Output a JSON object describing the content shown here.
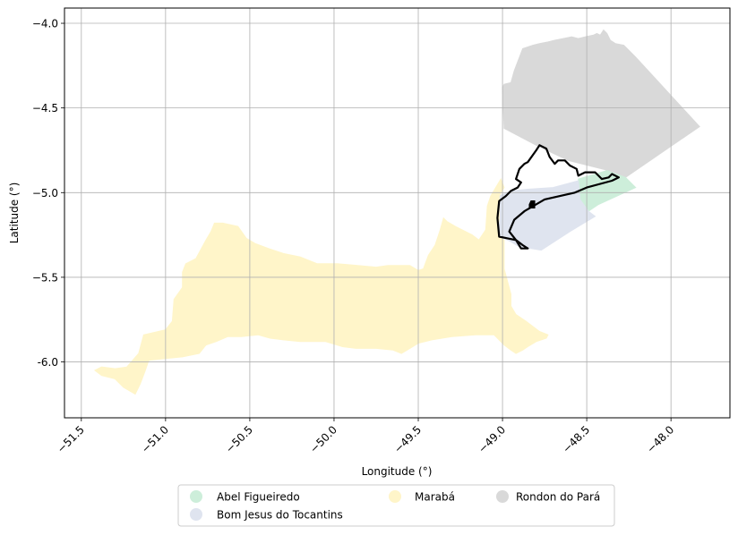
{
  "chart_data": {
    "type": "map",
    "xlabel": "Longitude (°)",
    "ylabel": "Latitude (°)",
    "xlim": [
      -51.6,
      -47.65
    ],
    "ylim": [
      -6.33,
      -3.91
    ],
    "x_ticks": [
      {
        "value": -51.5,
        "label": "−51.5"
      },
      {
        "value": -51.0,
        "label": "−51.0"
      },
      {
        "value": -50.5,
        "label": "−50.5"
      },
      {
        "value": -50.0,
        "label": "−50.0"
      },
      {
        "value": -49.5,
        "label": "−49.5"
      },
      {
        "value": -49.0,
        "label": "−49.0"
      },
      {
        "value": -48.5,
        "label": "−48.5"
      },
      {
        "value": -48.0,
        "label": "−48.0"
      }
    ],
    "y_ticks": [
      {
        "value": -4.0,
        "label": "−4.0"
      },
      {
        "value": -4.5,
        "label": "−4.5"
      },
      {
        "value": -5.0,
        "label": "−5.0"
      },
      {
        "value": -5.5,
        "label": "−5.5"
      },
      {
        "value": -6.0,
        "label": "-6.0"
      }
    ],
    "grid": true,
    "legend_placement": "bottom-center",
    "regions": [
      {
        "name": "Rondon do Pará",
        "color": "#d9d9d9",
        "polygon": [
          [
            -49.0,
            -4.38
          ],
          [
            -48.99,
            -4.36
          ],
          [
            -48.95,
            -4.35
          ],
          [
            -48.93,
            -4.28
          ],
          [
            -48.88,
            -4.15
          ],
          [
            -48.82,
            -4.13
          ],
          [
            -48.78,
            -4.12
          ],
          [
            -48.73,
            -4.11
          ],
          [
            -48.69,
            -4.1
          ],
          [
            -48.64,
            -4.09
          ],
          [
            -48.59,
            -4.08
          ],
          [
            -48.55,
            -4.09
          ],
          [
            -48.51,
            -4.08
          ],
          [
            -48.46,
            -4.07
          ],
          [
            -48.44,
            -4.06
          ],
          [
            -48.42,
            -4.07
          ],
          [
            -48.4,
            -4.04
          ],
          [
            -48.38,
            -4.06
          ],
          [
            -48.36,
            -4.1
          ],
          [
            -48.33,
            -4.12
          ],
          [
            -48.28,
            -4.13
          ],
          [
            -48.21,
            -4.2
          ],
          [
            -47.83,
            -4.61
          ],
          [
            -48.27,
            -4.91
          ],
          [
            -48.37,
            -4.87
          ],
          [
            -48.61,
            -4.81
          ],
          [
            -48.8,
            -4.72
          ],
          [
            -48.99,
            -4.62
          ],
          [
            -49.0,
            -4.38
          ]
        ]
      },
      {
        "name": "Abel Figueiredo",
        "color": "#cdeeda",
        "polygon": [
          [
            -48.55,
            -4.92
          ],
          [
            -48.38,
            -4.87
          ],
          [
            -48.27,
            -4.91
          ],
          [
            -48.21,
            -4.97
          ],
          [
            -48.43,
            -5.07
          ],
          [
            -48.49,
            -5.11
          ],
          [
            -48.54,
            -5.04
          ],
          [
            -48.55,
            -4.92
          ]
        ]
      },
      {
        "name": "Bom Jesus do Tocantins",
        "color": "#dfe4ef",
        "polygon": [
          [
            -49.02,
            -5.02
          ],
          [
            -48.95,
            -4.99
          ],
          [
            -48.85,
            -4.98
          ],
          [
            -48.7,
            -4.97
          ],
          [
            -48.55,
            -4.93
          ],
          [
            -48.54,
            -5.04
          ],
          [
            -48.49,
            -5.11
          ],
          [
            -48.45,
            -5.14
          ],
          [
            -48.6,
            -5.23
          ],
          [
            -48.77,
            -5.34
          ],
          [
            -48.83,
            -5.33
          ],
          [
            -48.88,
            -5.33
          ],
          [
            -48.9,
            -5.32
          ],
          [
            -48.95,
            -5.29
          ],
          [
            -48.99,
            -5.27
          ],
          [
            -49.02,
            -5.26
          ],
          [
            -49.03,
            -5.22
          ],
          [
            -49.02,
            -5.15
          ],
          [
            -49.02,
            -5.02
          ]
        ]
      },
      {
        "name": "Marabá",
        "color": "#fff5c9",
        "polygon": [
          [
            -51.42,
            -6.05
          ],
          [
            -51.38,
            -6.03
          ],
          [
            -51.3,
            -6.04
          ],
          [
            -51.23,
            -6.03
          ],
          [
            -51.16,
            -5.95
          ],
          [
            -51.13,
            -5.84
          ],
          [
            -51.0,
            -5.81
          ],
          [
            -50.96,
            -5.76
          ],
          [
            -50.95,
            -5.63
          ],
          [
            -50.9,
            -5.56
          ],
          [
            -50.9,
            -5.47
          ],
          [
            -50.88,
            -5.42
          ],
          [
            -50.82,
            -5.39
          ],
          [
            -50.76,
            -5.28
          ],
          [
            -50.73,
            -5.23
          ],
          [
            -50.71,
            -5.18
          ],
          [
            -50.66,
            -5.18
          ],
          [
            -50.57,
            -5.2
          ],
          [
            -50.52,
            -5.27
          ],
          [
            -50.47,
            -5.3
          ],
          [
            -50.39,
            -5.33
          ],
          [
            -50.3,
            -5.36
          ],
          [
            -50.2,
            -5.38
          ],
          [
            -50.1,
            -5.42
          ],
          [
            -49.98,
            -5.42
          ],
          [
            -49.86,
            -5.43
          ],
          [
            -49.75,
            -5.44
          ],
          [
            -49.68,
            -5.43
          ],
          [
            -49.6,
            -5.43
          ],
          [
            -49.55,
            -5.43
          ],
          [
            -49.5,
            -5.46
          ],
          [
            -49.47,
            -5.45
          ],
          [
            -49.44,
            -5.37
          ],
          [
            -49.4,
            -5.31
          ],
          [
            -49.37,
            -5.22
          ],
          [
            -49.35,
            -5.15
          ],
          [
            -49.33,
            -5.17
          ],
          [
            -49.28,
            -5.2
          ],
          [
            -49.18,
            -5.25
          ],
          [
            -49.14,
            -5.28
          ],
          [
            -49.1,
            -5.22
          ],
          [
            -49.09,
            -5.08
          ],
          [
            -49.07,
            -5.02
          ],
          [
            -49.04,
            -4.97
          ],
          [
            -49.01,
            -4.92
          ],
          [
            -48.99,
            -4.97
          ],
          [
            -49.02,
            -5.02
          ],
          [
            -49.02,
            -5.15
          ],
          [
            -49.03,
            -5.22
          ],
          [
            -49.02,
            -5.26
          ],
          [
            -48.99,
            -5.28
          ],
          [
            -48.99,
            -5.45
          ],
          [
            -48.95,
            -5.6
          ],
          [
            -48.95,
            -5.67
          ],
          [
            -48.92,
            -5.72
          ],
          [
            -48.86,
            -5.76
          ],
          [
            -48.78,
            -5.82
          ],
          [
            -48.73,
            -5.84
          ],
          [
            -48.74,
            -5.86
          ],
          [
            -48.8,
            -5.88
          ],
          [
            -48.85,
            -5.91
          ],
          [
            -48.88,
            -5.93
          ],
          [
            -48.92,
            -5.95
          ],
          [
            -48.95,
            -5.93
          ],
          [
            -48.99,
            -5.9
          ],
          [
            -49.05,
            -5.84
          ],
          [
            -49.16,
            -5.84
          ],
          [
            -49.3,
            -5.85
          ],
          [
            -49.42,
            -5.87
          ],
          [
            -49.5,
            -5.89
          ],
          [
            -49.55,
            -5.92
          ],
          [
            -49.6,
            -5.95
          ],
          [
            -49.65,
            -5.93
          ],
          [
            -49.75,
            -5.92
          ],
          [
            -49.87,
            -5.92
          ],
          [
            -49.95,
            -5.91
          ],
          [
            -50.05,
            -5.88
          ],
          [
            -50.2,
            -5.88
          ],
          [
            -50.3,
            -5.87
          ],
          [
            -50.38,
            -5.86
          ],
          [
            -50.45,
            -5.84
          ],
          [
            -50.55,
            -5.85
          ],
          [
            -50.63,
            -5.85
          ],
          [
            -50.7,
            -5.88
          ],
          [
            -50.76,
            -5.9
          ],
          [
            -50.8,
            -5.95
          ],
          [
            -50.9,
            -5.97
          ],
          [
            -51.0,
            -5.98
          ],
          [
            -51.1,
            -5.99
          ],
          [
            -51.12,
            -6.05
          ],
          [
            -51.15,
            -6.13
          ],
          [
            -51.18,
            -6.19
          ],
          [
            -51.25,
            -6.15
          ],
          [
            -51.3,
            -6.1
          ],
          [
            -51.38,
            -6.08
          ],
          [
            -51.42,
            -6.05
          ]
        ]
      }
    ],
    "outline": {
      "color": "#000000",
      "polygon": [
        [
          -48.98,
          -5.02
        ],
        [
          -48.95,
          -4.99
        ],
        [
          -48.91,
          -4.97
        ],
        [
          -48.89,
          -4.94
        ],
        [
          -48.92,
          -4.92
        ],
        [
          -48.9,
          -4.86
        ],
        [
          -48.87,
          -4.83
        ],
        [
          -48.85,
          -4.82
        ],
        [
          -48.8,
          -4.75
        ],
        [
          -48.78,
          -4.72
        ],
        [
          -48.74,
          -4.74
        ],
        [
          -48.72,
          -4.79
        ],
        [
          -48.69,
          -4.83
        ],
        [
          -48.67,
          -4.81
        ],
        [
          -48.63,
          -4.81
        ],
        [
          -48.6,
          -4.84
        ],
        [
          -48.56,
          -4.86
        ],
        [
          -48.55,
          -4.9
        ],
        [
          -48.51,
          -4.88
        ],
        [
          -48.45,
          -4.88
        ],
        [
          -48.41,
          -4.92
        ],
        [
          -48.37,
          -4.91
        ],
        [
          -48.35,
          -4.89
        ],
        [
          -48.31,
          -4.91
        ],
        [
          -48.35,
          -4.93
        ],
        [
          -48.5,
          -4.97
        ],
        [
          -48.57,
          -5.0
        ],
        [
          -48.75,
          -5.04
        ],
        [
          -48.87,
          -5.11
        ],
        [
          -48.93,
          -5.16
        ],
        [
          -48.96,
          -5.23
        ],
        [
          -48.92,
          -5.28
        ],
        [
          -48.88,
          -5.31
        ],
        [
          -48.85,
          -5.33
        ],
        [
          -48.89,
          -5.33
        ],
        [
          -48.92,
          -5.28
        ],
        [
          -48.97,
          -5.27
        ],
        [
          -49.02,
          -5.26
        ],
        [
          -49.03,
          -5.15
        ],
        [
          -49.02,
          -5.05
        ],
        [
          -48.98,
          -5.02
        ]
      ],
      "islet": [
        [
          -48.83,
          -5.05
        ],
        [
          -48.81,
          -5.05
        ],
        [
          -48.81,
          -5.09
        ],
        [
          -48.84,
          -5.09
        ],
        [
          -48.84,
          -5.07
        ],
        [
          -48.83,
          -5.05
        ]
      ]
    }
  },
  "legend": {
    "items": [
      {
        "label": "Abel Figueiredo",
        "color": "#cdeeda"
      },
      {
        "label": "Bom Jesus do Tocantins",
        "color": "#dfe4ef"
      },
      {
        "label": "Marabá",
        "color": "#fff5c9"
      },
      {
        "label": "Rondon do Pará",
        "color": "#d9d9d9"
      }
    ]
  }
}
